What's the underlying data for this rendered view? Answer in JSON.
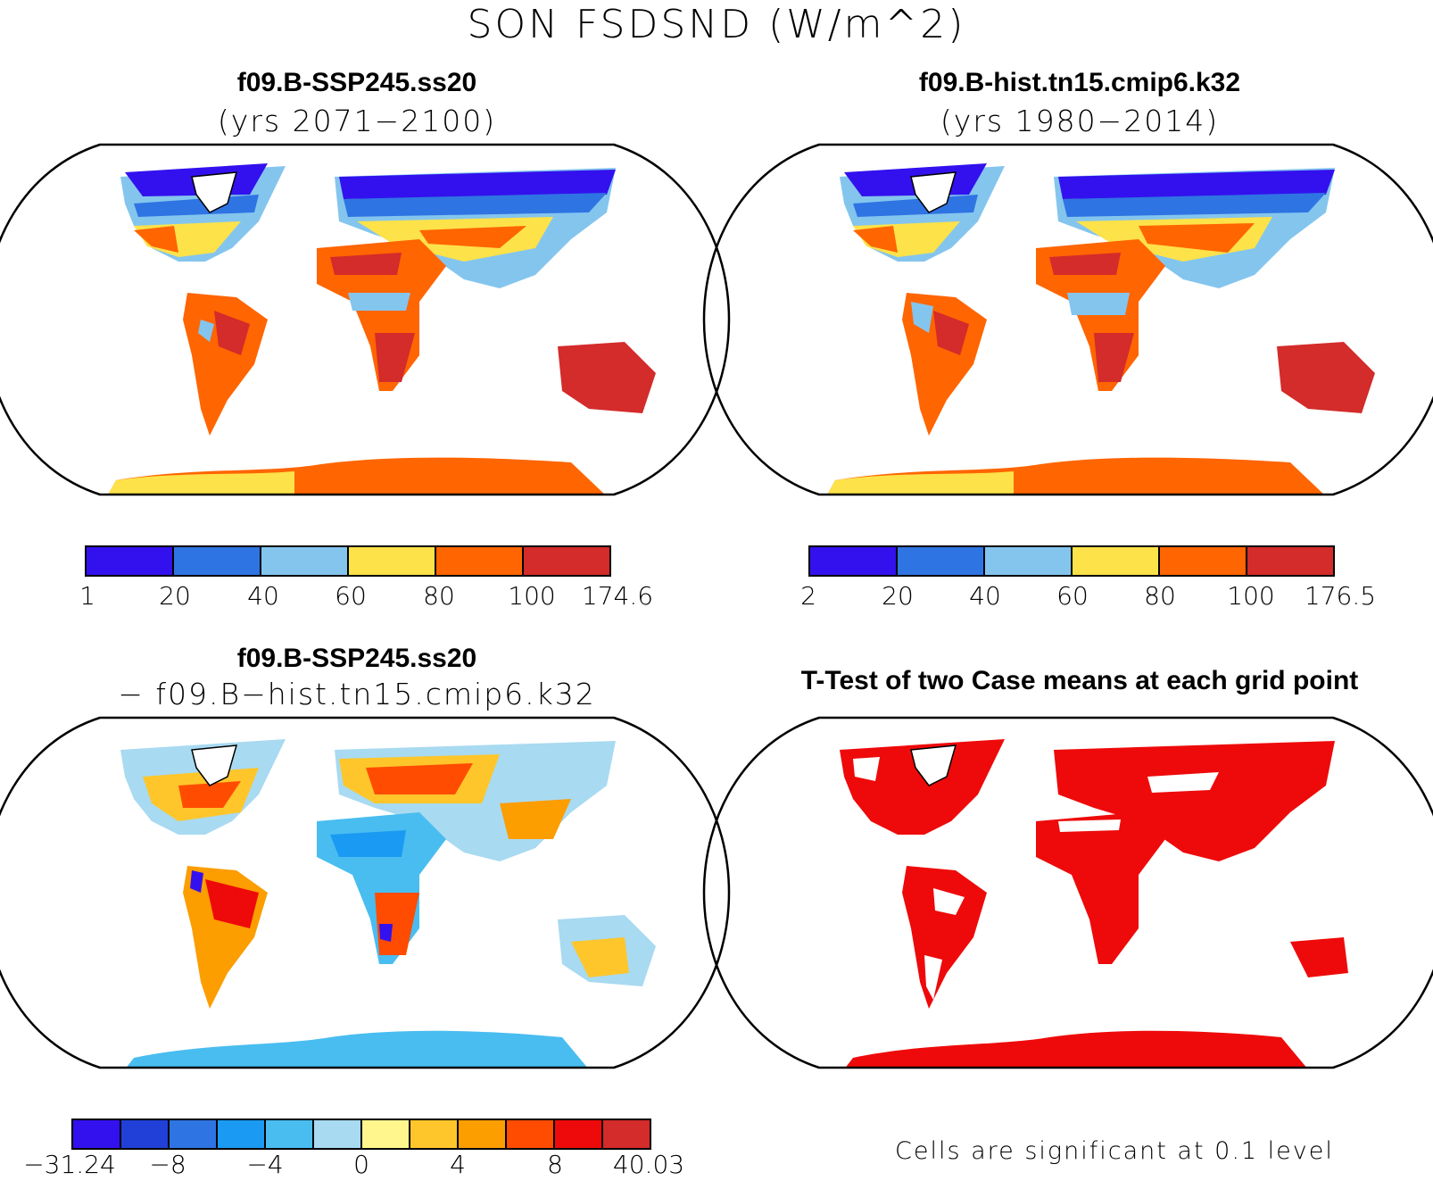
{
  "title": "SON FSDSND (W/m^2)",
  "panels": {
    "future": {
      "title": "f09.B-SSP245.ss20",
      "subtitle": "(yrs 2071−2100)",
      "colorbar": {
        "colors": [
          "#3311ee",
          "#2f74e3",
          "#84c5ee",
          "#fde24a",
          "#ff6500",
          "#d42b2b"
        ],
        "labels": [
          "1",
          "20",
          "40",
          "60",
          "80",
          "100",
          "174.6"
        ]
      }
    },
    "historical": {
      "title": "f09.B-hist.tn15.cmip6.k32",
      "subtitle": "(yrs 1980−2014)",
      "colorbar": {
        "colors": [
          "#3311ee",
          "#2f74e3",
          "#84c5ee",
          "#fde24a",
          "#ff6500",
          "#d42b2b"
        ],
        "labels": [
          "2",
          "20",
          "40",
          "60",
          "80",
          "100",
          "176.5"
        ]
      }
    },
    "difference": {
      "title": "f09.B-SSP245.ss20",
      "subtitle": "− f09.B−hist.tn15.cmip6.k32",
      "colorbar": {
        "colors": [
          "#3311ee",
          "#2140d8",
          "#2f74e3",
          "#1a9af2",
          "#49bdf0",
          "#a8daf1",
          "#fff78d",
          "#fec62a",
          "#fc9d00",
          "#ff4c00",
          "#ee0a0a",
          "#d42b2b"
        ],
        "labels": [
          "−31.24",
          "−8",
          "−4",
          "0",
          "4",
          "8",
          "40.03"
        ]
      }
    },
    "ttest": {
      "title": "T-Test of two Case means at each grid point",
      "note": "Cells are significant at 0.1 level",
      "significant_color": "#ee0a0a"
    }
  }
}
